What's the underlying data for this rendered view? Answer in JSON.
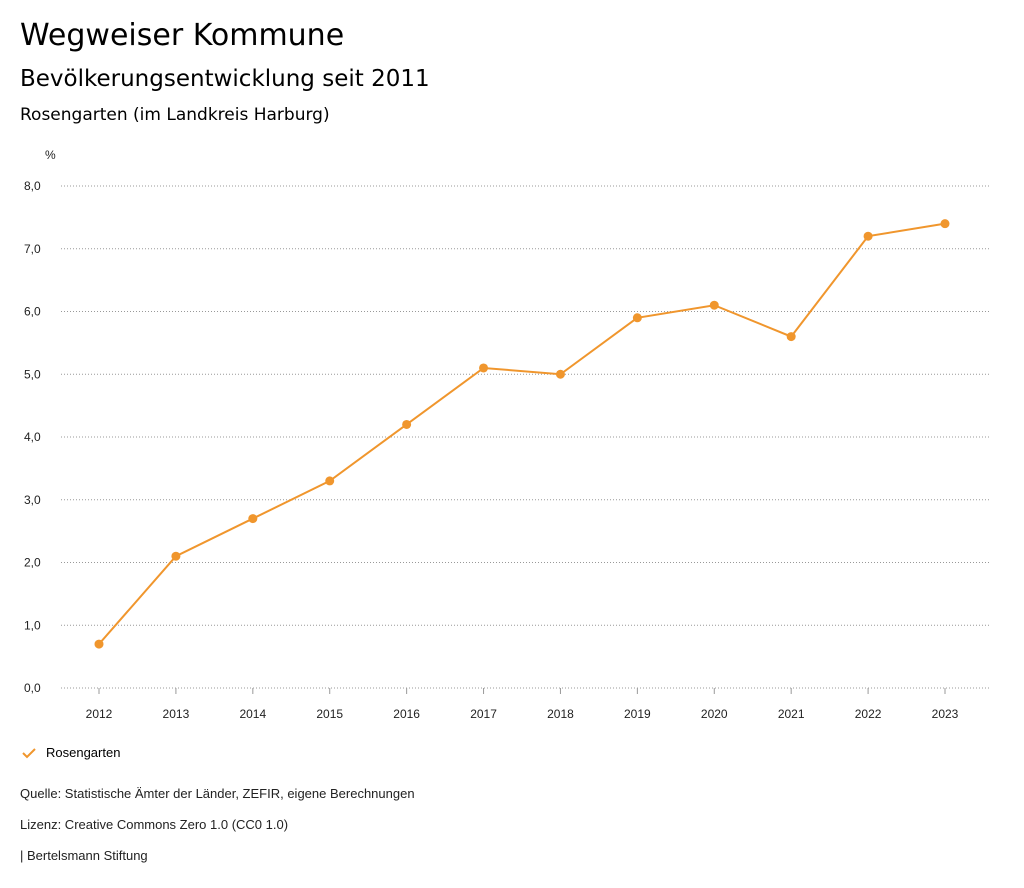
{
  "header": {
    "title": "Wegweiser Kommune",
    "subtitle": "Bevölkerungsentwicklung seit 2011",
    "region": "Rosengarten (im Landkreis Harburg)"
  },
  "chart_data": {
    "type": "line",
    "title": "Bevölkerungsentwicklung seit 2011",
    "ylabel": "%",
    "xlabel": "",
    "ylim": [
      0,
      8
    ],
    "yticks": [
      "0,0",
      "1,0",
      "2,0",
      "3,0",
      "4,0",
      "5,0",
      "6,0",
      "7,0",
      "8,0"
    ],
    "categories": [
      "2012",
      "2013",
      "2014",
      "2015",
      "2016",
      "2017",
      "2018",
      "2019",
      "2020",
      "2021",
      "2022",
      "2023"
    ],
    "series": [
      {
        "name": "Rosengarten",
        "color": "#f0962d",
        "values": [
          0.7,
          2.1,
          2.7,
          3.3,
          4.2,
          5.1,
          5.0,
          5.9,
          6.1,
          5.6,
          7.2,
          7.4
        ]
      }
    ],
    "grid": true,
    "legend_placement": "bottom-left"
  },
  "footer": {
    "source": "Quelle: Statistische Ämter der Länder, ZEFIR, eigene Berechnungen",
    "license": "Lizenz: Creative Commons Zero 1.0 (CC0 1.0)",
    "publisher": "| Bertelsmann Stiftung"
  }
}
